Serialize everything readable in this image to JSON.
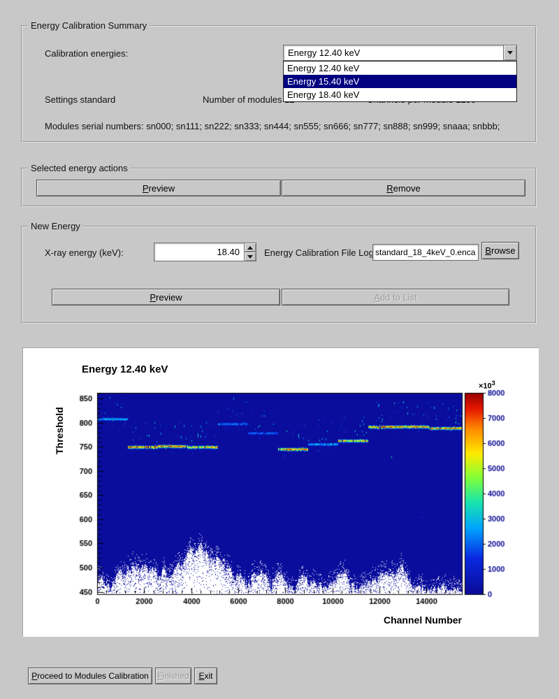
{
  "ui_colors": {
    "window_bg": "#c8c8c8",
    "selection_bg": "#000080",
    "selection_text": "#ffffff",
    "plot_base_blue": "#0a0a96"
  },
  "summary_group": {
    "title": "Energy Calibration Summary",
    "calibration_energies_label": "Calibration energies:",
    "combobox": {
      "value": "Energy 12.40 keV",
      "options": [
        "Energy 12.40 keV",
        "Energy 15.40 keV",
        "Energy 18.40 keV"
      ],
      "highlighted_index": 1
    },
    "settings_label": "Settings standard",
    "modules_count_label": "Number of modules 12",
    "channels_per_module_label": "Channels per module 1280",
    "serial_numbers_label": "Modules serial numbers: sn000; sn111; sn222; sn333; sn444; sn555; sn666; sn777; sn888; sn999; snaaa; snbbb;"
  },
  "actions_group": {
    "title": "Selected energy actions",
    "preview_button": {
      "key": "P",
      "post": "review"
    },
    "remove_button": {
      "key": "R",
      "post": "emove"
    }
  },
  "new_energy_group": {
    "title": "New Energy",
    "xray_energy_label": "X-ray energy (keV):",
    "xray_energy_value": "18.40",
    "file_log_label": "Energy Calibration File Log",
    "file_log_value": "standard_18_4keV_0.encal",
    "browse_button": {
      "key": "B",
      "post": "rowse"
    },
    "preview_button": {
      "key": "P",
      "post": "review"
    },
    "add_button": {
      "key": "A",
      "post": "dd to List"
    }
  },
  "footer": {
    "proceed_button": {
      "key": "P",
      "post": "roceed to Modules Calibration"
    },
    "finished_button": {
      "key": "F",
      "post": "inished"
    },
    "exit_button": {
      "key": "E",
      "post": "xit"
    }
  },
  "chart_data": {
    "type": "heatmap",
    "title": "Energy 12.40 keV",
    "xlabel": "Channel Number",
    "ylabel": "Threshold",
    "xlim": [
      0,
      15500
    ],
    "ylim": [
      445,
      862
    ],
    "x_ticks": [
      0,
      2000,
      4000,
      6000,
      8000,
      10000,
      12000,
      14000
    ],
    "y_ticks": [
      450,
      500,
      550,
      600,
      650,
      700,
      750,
      800,
      850
    ],
    "minor_tick_steps": {
      "x": 400,
      "y": 10
    },
    "colorbar": {
      "zlim": [
        0,
        8000
      ],
      "ticks": [
        0,
        1000,
        2000,
        3000,
        4000,
        5000,
        6000,
        7000,
        8000
      ],
      "scale_text": "×10",
      "scale_exp": "3",
      "position": "right"
    },
    "channels_per_module": 1280,
    "modules": [
      {
        "x_start": 0,
        "x_end": 1280,
        "threshold": 808,
        "peak": 3200
      },
      {
        "x_start": 1280,
        "x_end": 2560,
        "threshold": 750,
        "peak": 7600
      },
      {
        "x_start": 2560,
        "x_end": 3840,
        "threshold": 752,
        "peak": 7600
      },
      {
        "x_start": 3840,
        "x_end": 5120,
        "threshold": 751,
        "peak": 6800
      },
      {
        "x_start": 5120,
        "x_end": 6400,
        "threshold": 799,
        "peak": 2600
      },
      {
        "x_start": 6400,
        "x_end": 7680,
        "threshold": 779,
        "peak": 2400
      },
      {
        "x_start": 7680,
        "x_end": 8960,
        "threshold": 746,
        "peak": 7400
      },
      {
        "x_start": 8960,
        "x_end": 10240,
        "threshold": 757,
        "peak": 3000
      },
      {
        "x_start": 10240,
        "x_end": 11520,
        "threshold": 764,
        "peak": 6600
      },
      {
        "x_start": 11520,
        "x_end": 12800,
        "threshold": 793,
        "peak": 7800
      },
      {
        "x_start": 12800,
        "x_end": 14080,
        "threshold": 792,
        "peak": 7800
      },
      {
        "x_start": 14080,
        "x_end": 15360,
        "threshold": 790,
        "peak": 7400
      }
    ],
    "noise_floor_range": [
      452,
      568
    ]
  }
}
